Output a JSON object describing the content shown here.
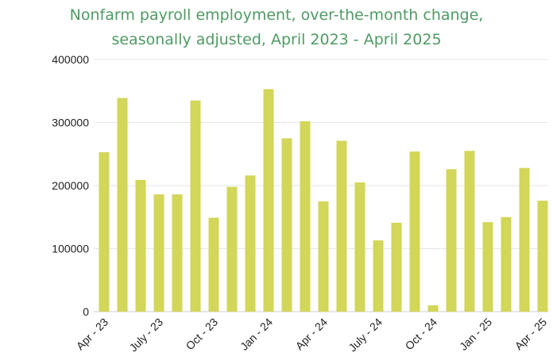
{
  "chart_data": {
    "type": "bar",
    "title": "Nonfarm payroll employment, over-the-month change,",
    "subtitle": "seasonally adjusted, April 2023 - April 2025",
    "xlabel": "",
    "ylabel": "",
    "ylim": [
      0,
      400000
    ],
    "yticks": [
      "0",
      "100000",
      "200000",
      "300000",
      "400000"
    ],
    "grid": true,
    "categories": [
      "Apr - 23",
      "May - 23",
      "Jun - 23",
      "July - 23",
      "Aug - 23",
      "Sep - 23",
      "Oct - 23",
      "Nov - 23",
      "Dec - 23",
      "Jan - 24",
      "Feb - 24",
      "Mar - 24",
      "Apr - 24",
      "May - 24",
      "Jun - 24",
      "July - 24",
      "Aug - 24",
      "Sep - 24",
      "Oct - 24",
      "Nov - 24",
      "Dec - 24",
      "Jan - 25",
      "Feb - 25",
      "Mar - 25",
      "Apr - 25"
    ],
    "xtick_labels": [
      "Apr - 23",
      "July - 23",
      "Oct - 23",
      "Jan - 24",
      "Apr - 24",
      "July - 24",
      "Oct - 24",
      "Jan - 25",
      "Apr - 25"
    ],
    "values": [
      253000,
      339000,
      209000,
      186000,
      186000,
      335000,
      149000,
      198000,
      216000,
      353000,
      275000,
      302000,
      175000,
      271000,
      205000,
      113000,
      141000,
      254000,
      10000,
      226000,
      255000,
      142000,
      150000,
      228000,
      176000
    ],
    "bar_color": "#d2d659"
  }
}
